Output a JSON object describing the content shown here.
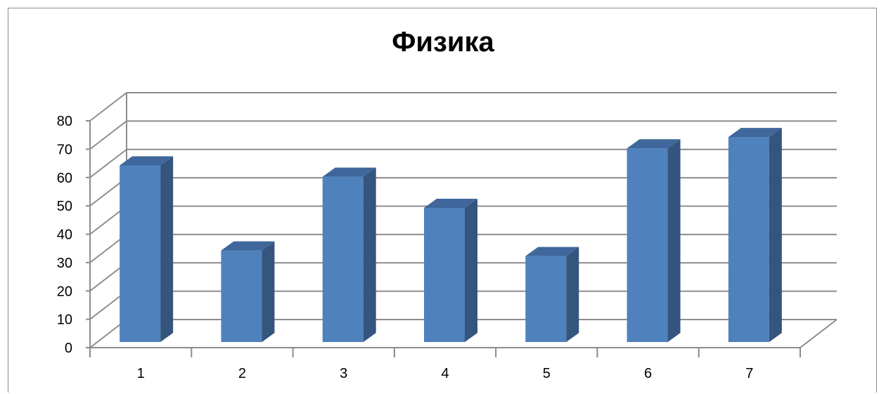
{
  "chart_data": {
    "type": "bar",
    "title": "Физика",
    "categories": [
      "1",
      "2",
      "3",
      "4",
      "5",
      "6",
      "7"
    ],
    "values": [
      68,
      38,
      64,
      53,
      36,
      74,
      78
    ],
    "ylim": [
      0,
      80
    ],
    "yticks": [
      "0",
      "10",
      "20",
      "30",
      "40",
      "50",
      "60",
      "70",
      "80"
    ],
    "xlabel": "",
    "ylabel": "",
    "grid": true,
    "legend": "none",
    "style": "3d-column",
    "colors": {
      "bar_front": "#4f81bd",
      "bar_side": "#34557e",
      "bar_top": "#3f679b",
      "grid": "#8c8c8c"
    }
  }
}
